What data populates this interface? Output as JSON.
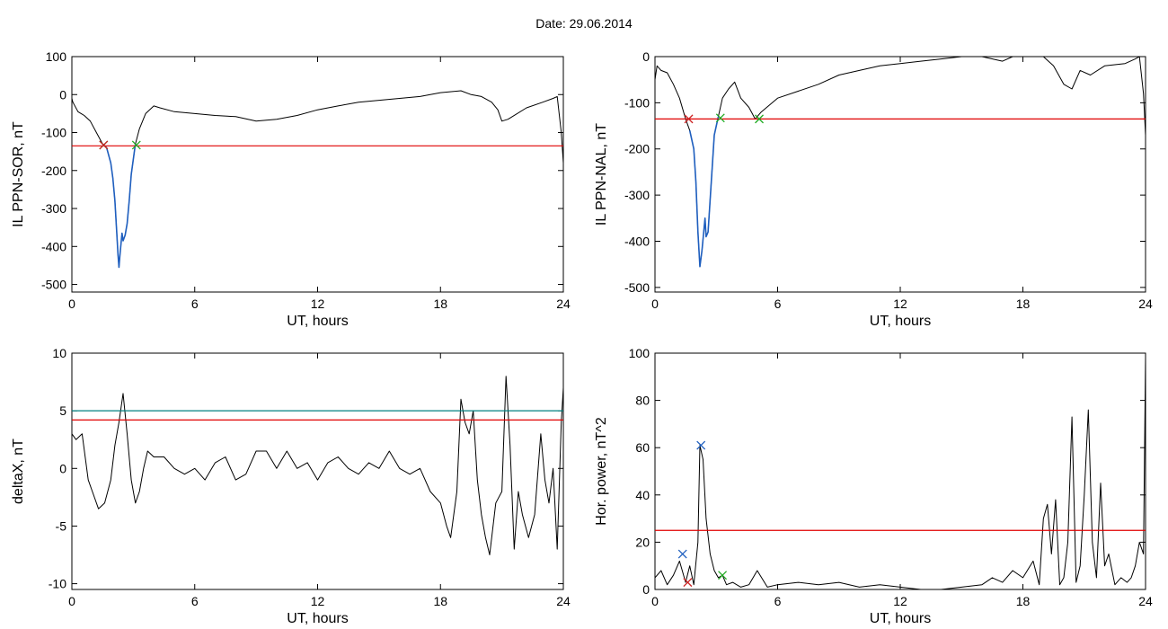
{
  "figure": {
    "title": "Date:  29.06.2014"
  },
  "colors": {
    "trace": "#000000",
    "threshold": "#e00000",
    "teal_line": "#008080",
    "interval": "#1f5fbf",
    "marker_green": "#22aa22",
    "marker_red": "#cc2222",
    "marker_blue": "#1f5fbf"
  },
  "chart_data": [
    {
      "id": "il-sor",
      "type": "line",
      "xlabel": "UT, hours",
      "ylabel": "IL PPN-SOR, nT",
      "xlim": [
        0,
        24
      ],
      "ylim": [
        -520,
        100
      ],
      "xticks": [
        0,
        6,
        12,
        18,
        24
      ],
      "yticks": [
        100,
        0,
        -100,
        -200,
        -300,
        -400,
        -500
      ],
      "series": [
        {
          "role": "trace",
          "x": [
            0,
            0.05,
            0.3,
            0.6,
            0.9,
            1.2,
            1.5,
            1.7,
            1.9,
            2.0,
            2.1,
            2.2,
            2.25,
            2.3,
            2.35,
            2.45,
            2.5,
            2.6,
            2.7,
            2.8,
            2.9,
            3.1,
            3.3,
            3.6,
            4.0,
            4.3,
            5,
            6,
            7,
            8,
            9,
            10,
            11,
            12,
            13,
            14,
            15,
            16,
            17,
            18,
            19,
            19.5,
            20,
            20.5,
            20.8,
            21.0,
            21.3,
            22.2,
            23,
            23.5,
            23.7,
            23.9,
            24
          ],
          "y": [
            -10,
            -20,
            -45,
            -55,
            -70,
            -100,
            -130,
            -140,
            -180,
            -220,
            -280,
            -370,
            -420,
            -455,
            -420,
            -365,
            -385,
            -370,
            -340,
            -280,
            -210,
            -130,
            -90,
            -50,
            -30,
            -35,
            -45,
            -50,
            -55,
            -58,
            -70,
            -65,
            -55,
            -40,
            -30,
            -20,
            -15,
            -10,
            -5,
            5,
            10,
            0,
            -5,
            -20,
            -40,
            -70,
            -65,
            -35,
            -20,
            -10,
            -5,
            -100,
            -180
          ]
        },
        {
          "role": "interval",
          "x": [
            1.5,
            1.7,
            1.9,
            2.0,
            2.1,
            2.2,
            2.25,
            2.3,
            2.35,
            2.45,
            2.5,
            2.6,
            2.7,
            2.8,
            2.9,
            3.1
          ],
          "y": [
            -130,
            -140,
            -180,
            -220,
            -280,
            -370,
            -420,
            -455,
            -420,
            -365,
            -385,
            -370,
            -340,
            -280,
            -210,
            -130
          ]
        },
        {
          "role": "threshold",
          "y": -135
        }
      ],
      "markers": [
        {
          "x": 1.55,
          "y": -133,
          "color": "green"
        },
        {
          "x": 1.55,
          "y": -133,
          "color": "red"
        },
        {
          "x": 3.15,
          "y": -133,
          "color": "green"
        }
      ]
    },
    {
      "id": "il-nal",
      "type": "line",
      "xlabel": "UT, hours",
      "ylabel": "IL PPN-NAL, nT",
      "xlim": [
        0,
        24
      ],
      "ylim": [
        -510,
        0
      ],
      "xticks": [
        0,
        6,
        12,
        18,
        24
      ],
      "yticks": [
        0,
        -100,
        -200,
        -300,
        -400,
        -500
      ],
      "series": [
        {
          "role": "trace",
          "x": [
            0,
            0.1,
            0.3,
            0.6,
            0.9,
            1.2,
            1.5,
            1.7,
            1.9,
            2.0,
            2.1,
            2.2,
            2.3,
            2.45,
            2.5,
            2.6,
            2.7,
            2.8,
            2.9,
            3.1,
            3.3,
            3.6,
            3.9,
            4.2,
            4.6,
            4.9,
            5.2,
            6,
            7,
            8,
            9,
            10,
            11,
            12,
            13,
            14,
            15,
            16,
            17,
            17.5,
            18,
            19,
            19.5,
            20.0,
            20.4,
            20.8,
            21.3,
            22,
            23,
            23.5,
            23.7,
            23.9,
            24
          ],
          "y": [
            -50,
            -20,
            -30,
            -35,
            -60,
            -90,
            -135,
            -160,
            -200,
            -270,
            -380,
            -455,
            -420,
            -350,
            -390,
            -380,
            -310,
            -240,
            -170,
            -130,
            -90,
            -70,
            -55,
            -90,
            -110,
            -135,
            -120,
            -90,
            -75,
            -60,
            -40,
            -30,
            -20,
            -15,
            -10,
            -5,
            5,
            5,
            -10,
            5,
            5,
            0,
            -20,
            -60,
            -70,
            -30,
            -40,
            -20,
            -15,
            -5,
            0,
            -80,
            -170
          ]
        },
        {
          "role": "interval",
          "x": [
            1.7,
            1.9,
            2.0,
            2.1,
            2.2,
            2.3,
            2.45,
            2.5,
            2.6,
            2.7,
            2.8,
            2.9,
            3.1
          ],
          "y": [
            -160,
            -200,
            -270,
            -380,
            -455,
            -420,
            -350,
            -390,
            -380,
            -310,
            -240,
            -170,
            -130
          ]
        },
        {
          "role": "threshold",
          "y": -135
        }
      ],
      "markers": [
        {
          "x": 1.65,
          "y": -135,
          "color": "red"
        },
        {
          "x": 3.2,
          "y": -133,
          "color": "green"
        },
        {
          "x": 5.1,
          "y": -135,
          "color": "green"
        }
      ]
    },
    {
      "id": "deltax",
      "type": "line",
      "xlabel": "UT, hours",
      "ylabel": "deltaX, nT",
      "xlim": [
        0,
        24
      ],
      "ylim": [
        -10.5,
        10
      ],
      "xticks": [
        0,
        6,
        12,
        18,
        24
      ],
      "yticks": [
        10,
        5,
        0,
        -5,
        -10
      ],
      "series": [
        {
          "role": "trace",
          "x": [
            0,
            0.2,
            0.5,
            0.8,
            1.0,
            1.3,
            1.6,
            1.9,
            2.1,
            2.3,
            2.5,
            2.7,
            2.9,
            3.1,
            3.3,
            3.5,
            3.7,
            4.0,
            4.5,
            5,
            5.5,
            6,
            6.5,
            7,
            7.5,
            8,
            8.5,
            9,
            9.5,
            10,
            10.5,
            11,
            11.5,
            12,
            12.5,
            13,
            13.5,
            14,
            14.5,
            15,
            15.5,
            16,
            16.5,
            17,
            17.5,
            18,
            18.3,
            18.5,
            18.8,
            19.0,
            19.2,
            19.4,
            19.6,
            19.8,
            20.0,
            20.2,
            20.4,
            20.7,
            21.0,
            21.2,
            21.4,
            21.6,
            21.8,
            22.0,
            22.3,
            22.6,
            22.9,
            23.1,
            23.3,
            23.5,
            23.7,
            23.9,
            24
          ],
          "y": [
            3,
            2.5,
            3,
            -1,
            -2,
            -3.5,
            -3,
            -1,
            2,
            4,
            6.5,
            3,
            -1,
            -3,
            -2,
            0,
            1.5,
            1,
            1,
            0,
            -0.5,
            0,
            -1,
            0.5,
            1,
            -1,
            -0.5,
            1.5,
            1.5,
            0,
            1.5,
            0,
            0.5,
            -1,
            0.5,
            1,
            0,
            -0.5,
            0.5,
            0,
            1.5,
            0,
            -0.5,
            0,
            -2,
            -3,
            -5,
            -6,
            -2,
            6,
            4,
            3,
            5,
            -1,
            -4,
            -6,
            -7.5,
            -3,
            -2,
            8,
            2,
            -7,
            -2,
            -4,
            -6,
            -4,
            3,
            -1,
            -3,
            0,
            -7,
            4,
            7
          ]
        },
        {
          "role": "teal_line",
          "y": 5
        },
        {
          "role": "threshold",
          "y": 4.2
        }
      ]
    },
    {
      "id": "hor-power",
      "type": "line",
      "xlabel": "UT, hours",
      "ylabel": "Hor. power, nT^2",
      "xlim": [
        0,
        24
      ],
      "ylim": [
        0,
        100
      ],
      "xticks": [
        0,
        6,
        12,
        18,
        24
      ],
      "yticks": [
        100,
        80,
        60,
        40,
        20,
        0
      ],
      "series": [
        {
          "role": "trace",
          "x": [
            0,
            0.3,
            0.6,
            0.9,
            1.2,
            1.5,
            1.7,
            1.9,
            2.1,
            2.2,
            2.35,
            2.5,
            2.7,
            2.9,
            3.1,
            3.3,
            3.5,
            3.8,
            4.2,
            4.6,
            5,
            5.5,
            6,
            7,
            8,
            9,
            10,
            11,
            12,
            13,
            14,
            15,
            16,
            16.5,
            17,
            17.5,
            18,
            18.5,
            18.8,
            19.0,
            19.2,
            19.4,
            19.6,
            19.8,
            20.0,
            20.2,
            20.4,
            20.6,
            20.8,
            21.0,
            21.2,
            21.4,
            21.6,
            21.8,
            22.0,
            22.2,
            22.5,
            22.8,
            23.1,
            23.3,
            23.5,
            23.7,
            23.9,
            24
          ],
          "y": [
            5,
            8,
            2,
            6,
            12,
            3,
            10,
            2,
            20,
            61,
            55,
            30,
            15,
            8,
            5,
            6,
            2,
            3,
            1,
            2,
            8,
            1,
            2,
            3,
            2,
            3,
            1,
            2,
            1,
            0,
            0,
            1,
            2,
            5,
            3,
            8,
            5,
            12,
            2,
            30,
            36,
            15,
            38,
            2,
            5,
            20,
            73,
            3,
            10,
            40,
            76,
            20,
            5,
            45,
            10,
            15,
            2,
            5,
            3,
            5,
            10,
            20,
            15,
            98
          ]
        },
        {
          "role": "threshold",
          "y": 25
        }
      ],
      "markers": [
        {
          "x": 1.35,
          "y": 15,
          "color": "blue"
        },
        {
          "x": 1.6,
          "y": 3,
          "color": "red"
        },
        {
          "x": 2.25,
          "y": 61,
          "color": "blue"
        },
        {
          "x": 3.3,
          "y": 6,
          "color": "green"
        }
      ]
    }
  ]
}
